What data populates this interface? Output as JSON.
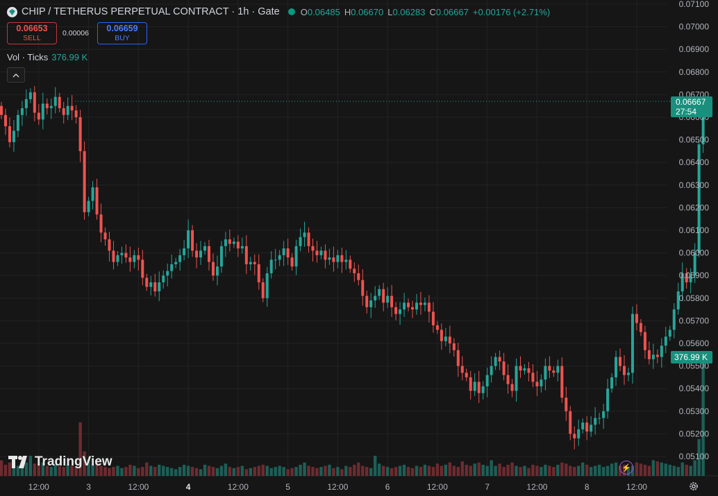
{
  "header": {
    "title": "CHIP / TETHERUS PERPETUAL CONTRACT · 1h · Gate",
    "ohlc": [
      {
        "key": "O",
        "value": "0.06485"
      },
      {
        "key": "H",
        "value": "0.06670"
      },
      {
        "key": "L",
        "value": "0.06283"
      },
      {
        "key": "C",
        "value": "0.06667"
      }
    ],
    "change": "+0.00176 (+2.71%)",
    "market_status_color": "#089981"
  },
  "trade": {
    "sell_price": "0.06653",
    "sell_label": "SELL",
    "spread": "0.00006",
    "buy_price": "0.06659",
    "buy_label": "BUY"
  },
  "volume_legend": {
    "label": "Vol · Ticks",
    "value": "376.99 K"
  },
  "price_label": {
    "price": "0.06667",
    "countdown": "27:54"
  },
  "volume_label": "376.99 K",
  "brand": "TradingView",
  "colors": {
    "up": "#26a69a",
    "down": "#ef5350",
    "up_vol": "#1d5f56",
    "down_vol": "#6e2b30",
    "grid": "#232323"
  },
  "icons": [
    "coin-icon",
    "market-status-icon",
    "chevron-up-icon",
    "tradingview-logo-icon",
    "lightning-icon",
    "gear-icon"
  ],
  "chart_data": {
    "type": "candlestick",
    "ylim": [
      0.0506,
      0.071
    ],
    "y_ticks": [
      "0.07100",
      "0.07000",
      "0.06900",
      "0.06800",
      "0.06700",
      "0.06600",
      "0.06500",
      "0.06400",
      "0.06300",
      "0.06200",
      "0.06100",
      "0.06000",
      "0.05900",
      "0.05800",
      "0.05700",
      "0.05600",
      "0.05500",
      "0.05400",
      "0.05300",
      "0.05200",
      "0.05100"
    ],
    "x_ticks": [
      {
        "label": "12:00",
        "index": 9,
        "bold": false
      },
      {
        "label": "3",
        "index": 21,
        "bold": false
      },
      {
        "label": "12:00",
        "index": 33,
        "bold": false
      },
      {
        "label": "4",
        "index": 45,
        "bold": true
      },
      {
        "label": "12:00",
        "index": 57,
        "bold": false
      },
      {
        "label": "5",
        "index": 69,
        "bold": false
      },
      {
        "label": "12:00",
        "index": 81,
        "bold": false
      },
      {
        "label": "6",
        "index": 93,
        "bold": false
      },
      {
        "label": "12:00",
        "index": 105,
        "bold": false
      },
      {
        "label": "7",
        "index": 117,
        "bold": false
      },
      {
        "label": "12:00",
        "index": 129,
        "bold": false
      },
      {
        "label": "8",
        "index": 141,
        "bold": false
      },
      {
        "label": "12:00",
        "index": 153,
        "bold": false
      }
    ],
    "close": [
      0.0661,
      0.0656,
      0.0649,
      0.0654,
      0.0661,
      0.0664,
      0.0668,
      0.0671,
      0.0662,
      0.0659,
      0.0666,
      0.0664,
      0.0665,
      0.0669,
      0.0664,
      0.0661,
      0.0665,
      0.0663,
      0.066,
      0.0645,
      0.0618,
      0.0623,
      0.0629,
      0.0617,
      0.0609,
      0.0606,
      0.0601,
      0.0596,
      0.0599,
      0.06,
      0.0598,
      0.0596,
      0.0599,
      0.0597,
      0.0589,
      0.0585,
      0.0587,
      0.0583,
      0.0587,
      0.059,
      0.0592,
      0.0595,
      0.0596,
      0.0599,
      0.0602,
      0.061,
      0.0601,
      0.0598,
      0.0601,
      0.0603,
      0.0596,
      0.059,
      0.0594,
      0.0603,
      0.0606,
      0.0604,
      0.0605,
      0.0602,
      0.0603,
      0.0595,
      0.0596,
      0.0595,
      0.0587,
      0.058,
      0.0591,
      0.0597,
      0.0597,
      0.0599,
      0.0602,
      0.0598,
      0.0594,
      0.0603,
      0.0607,
      0.0609,
      0.0603,
      0.0601,
      0.0599,
      0.0601,
      0.0597,
      0.0598,
      0.0596,
      0.0599,
      0.0596,
      0.0597,
      0.0593,
      0.0591,
      0.0588,
      0.0581,
      0.0576,
      0.0579,
      0.0581,
      0.0584,
      0.0578,
      0.0581,
      0.0576,
      0.0573,
      0.0575,
      0.0578,
      0.0576,
      0.0575,
      0.0578,
      0.0577,
      0.0578,
      0.0574,
      0.0568,
      0.0566,
      0.0561,
      0.0563,
      0.056,
      0.0557,
      0.055,
      0.0547,
      0.0545,
      0.0539,
      0.0543,
      0.0538,
      0.0541,
      0.0546,
      0.055,
      0.0554,
      0.0552,
      0.0546,
      0.0542,
      0.0539,
      0.055,
      0.0548,
      0.0549,
      0.0547,
      0.0543,
      0.0541,
      0.0544,
      0.055,
      0.0548,
      0.0547,
      0.055,
      0.0536,
      0.053,
      0.052,
      0.0518,
      0.0522,
      0.0525,
      0.0521,
      0.0524,
      0.0527,
      0.0527,
      0.053,
      0.054,
      0.0545,
      0.0554,
      0.055,
      0.0546,
      0.0547,
      0.0573,
      0.0569,
      0.0565,
      0.0557,
      0.0553,
      0.0555,
      0.0554,
      0.0559,
      0.0563,
      0.0566,
      0.0575,
      0.0583,
      0.0591,
      0.0587,
      0.059,
      0.06,
      0.0648,
      0.0667
    ],
    "volume": [
      14,
      10,
      12,
      8,
      9,
      11,
      12,
      18,
      11,
      10,
      12,
      9,
      8,
      10,
      9,
      8,
      10,
      9,
      8,
      48,
      22,
      15,
      10,
      12,
      9,
      8,
      7,
      8,
      9,
      7,
      8,
      10,
      9,
      7,
      8,
      12,
      9,
      8,
      10,
      9,
      8,
      7,
      6,
      8,
      10,
      9,
      8,
      7,
      6,
      10,
      9,
      8,
      7,
      9,
      11,
      8,
      7,
      8,
      9,
      6,
      7,
      8,
      9,
      10,
      9,
      7,
      8,
      9,
      8,
      6,
      7,
      8,
      10,
      12,
      9,
      8,
      7,
      8,
      9,
      10,
      7,
      8,
      6,
      9,
      8,
      10,
      12,
      9,
      8,
      7,
      18,
      11,
      9,
      8,
      7,
      8,
      9,
      10,
      8,
      7,
      9,
      8,
      10,
      9,
      8,
      11,
      9,
      10,
      12,
      9,
      8,
      13,
      10,
      9,
      11,
      12,
      10,
      9,
      14,
      9,
      11,
      8,
      10,
      12,
      9,
      8,
      9,
      7,
      10,
      9,
      8,
      10,
      9,
      8,
      10,
      12,
      11,
      9,
      8,
      9,
      12,
      10,
      8,
      9,
      10,
      8,
      9,
      11,
      12,
      9,
      10,
      8,
      9,
      12,
      11,
      10,
      9,
      14,
      13,
      12,
      11,
      10,
      9,
      8,
      12,
      10,
      9,
      14,
      33,
      107
    ]
  }
}
